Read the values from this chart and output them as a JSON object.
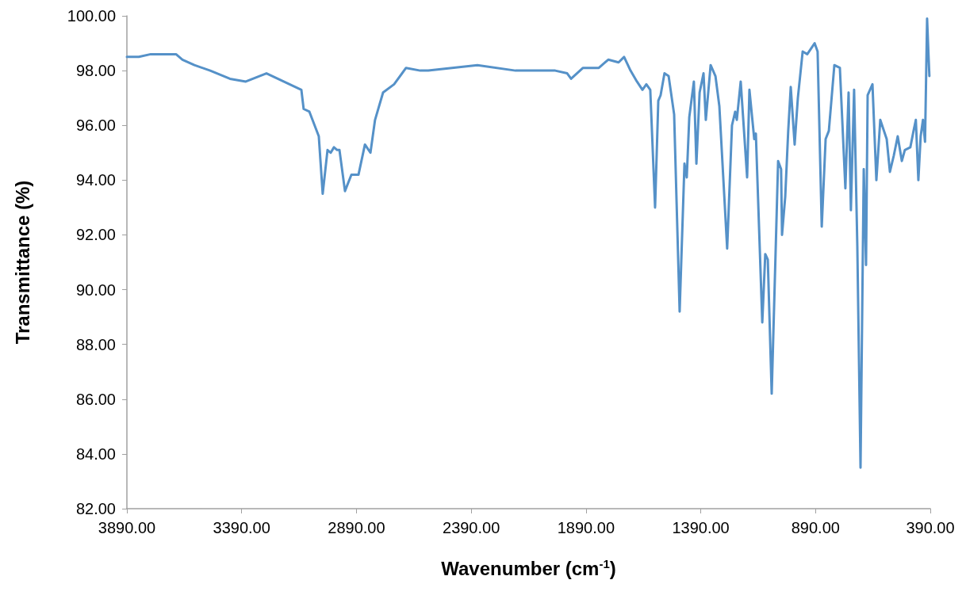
{
  "chart_data": {
    "type": "line",
    "xlabel": "Wavenumber (cm$^{-1}$)",
    "ylabel": "Transmittance (%)",
    "xlim": [
      3890,
      390
    ],
    "ylim": [
      82,
      100
    ],
    "xticks": [
      {
        "value": 3890,
        "label": "3890.00"
      },
      {
        "value": 3390,
        "label": "3390.00"
      },
      {
        "value": 2890,
        "label": "2890.00"
      },
      {
        "value": 2390,
        "label": "2390.00"
      },
      {
        "value": 1890,
        "label": "1890.00"
      },
      {
        "value": 1390,
        "label": "1390.00"
      },
      {
        "value": 890,
        "label": "890.00"
      },
      {
        "value": 390,
        "label": "390.00"
      }
    ],
    "yticks": [
      {
        "value": 82,
        "label": "82.00"
      },
      {
        "value": 84,
        "label": "84.00"
      },
      {
        "value": 86,
        "label": "86.00"
      },
      {
        "value": 88,
        "label": "88.00"
      },
      {
        "value": 90,
        "label": "90.00"
      },
      {
        "value": 92,
        "label": "92.00"
      },
      {
        "value": 94,
        "label": "94.00"
      },
      {
        "value": 96,
        "label": "96.00"
      },
      {
        "value": 98,
        "label": "98.00"
      },
      {
        "value": 100,
        "label": "100.00"
      }
    ],
    "marker": "none",
    "line_style": "solid",
    "series": [
      {
        "color": "#5591c8",
        "x": [
          3890,
          3838,
          3786,
          3735,
          3676,
          3648,
          3596,
          3527,
          3441,
          3372,
          3282,
          3130,
          3120,
          3095,
          3054,
          3037,
          3016,
          3002,
          2988,
          2974,
          2964,
          2940,
          2912,
          2881,
          2853,
          2829,
          2809,
          2774,
          2726,
          2674,
          2612,
          2577,
          2363,
          2197,
          2024,
          1972,
          1955,
          1903,
          1834,
          1793,
          1748,
          1724,
          1696,
          1668,
          1644,
          1627,
          1610,
          1589,
          1575,
          1565,
          1548,
          1530,
          1506,
          1482,
          1461,
          1451,
          1440,
          1420,
          1409,
          1395,
          1378,
          1368,
          1347,
          1326,
          1309,
          1275,
          1254,
          1240,
          1233,
          1216,
          1188,
          1178,
          1157,
          1150,
          1122,
          1109,
          1098,
          1081,
          1053,
          1040,
          1036,
          1022,
          1009,
          998,
          981,
          967,
          946,
          926,
          894,
          881,
          863,
          846,
          832,
          808,
          784,
          760,
          746,
          736,
          722,
          708,
          694,
          680,
          670,
          663,
          642,
          625,
          608,
          580,
          566,
          549,
          532,
          514,
          501,
          477,
          463,
          453,
          442,
          432,
          422,
          413,
          404,
          398,
          394
        ],
        "values": [
          98.5,
          98.5,
          98.6,
          98.6,
          98.6,
          98.4,
          98.2,
          98.0,
          97.7,
          97.6,
          97.9,
          97.3,
          96.6,
          96.5,
          95.6,
          93.5,
          95.1,
          95.0,
          95.2,
          95.1,
          95.1,
          93.6,
          94.2,
          94.2,
          95.3,
          95.0,
          96.2,
          97.2,
          97.5,
          98.1,
          98.0,
          98.0,
          98.2,
          98.0,
          98.0,
          97.9,
          97.7,
          98.1,
          98.1,
          98.4,
          98.3,
          98.5,
          98.0,
          97.6,
          97.3,
          97.5,
          97.3,
          93.0,
          96.9,
          97.1,
          97.9,
          97.8,
          96.4,
          89.2,
          94.6,
          94.1,
          96.3,
          97.6,
          94.6,
          97.2,
          97.9,
          96.2,
          98.2,
          97.8,
          96.7,
          91.5,
          96.0,
          96.5,
          96.2,
          97.6,
          94.1,
          97.3,
          95.5,
          95.7,
          88.8,
          91.3,
          91.1,
          86.2,
          94.7,
          94.4,
          92.0,
          93.4,
          95.8,
          97.4,
          95.3,
          97.0,
          98.7,
          98.6,
          99.0,
          98.7,
          92.3,
          95.5,
          95.8,
          98.2,
          98.1,
          93.7,
          97.2,
          92.9,
          97.3,
          91.6,
          83.5,
          94.4,
          90.9,
          97.1,
          97.5,
          94.0,
          96.2,
          95.5,
          94.3,
          94.9,
          95.6,
          94.7,
          95.1,
          95.2,
          95.8,
          96.2,
          94.0,
          95.6,
          96.2,
          95.4,
          99.9,
          98.6,
          97.8
        ]
      }
    ]
  }
}
